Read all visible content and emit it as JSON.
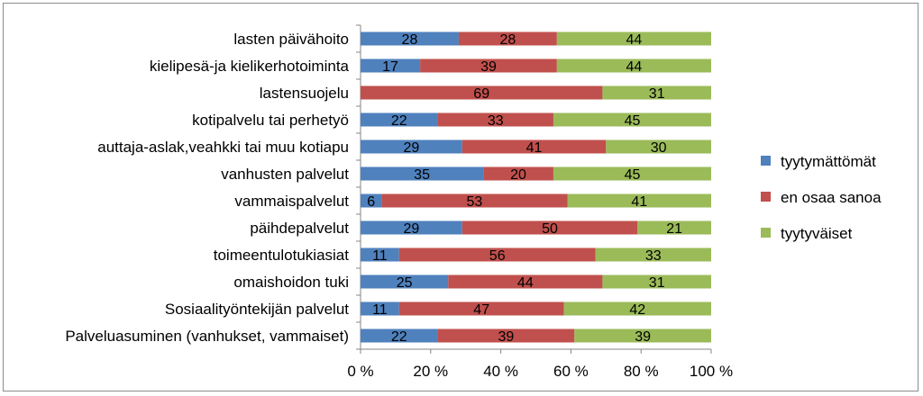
{
  "chart_data": {
    "type": "bar",
    "orientation": "horizontal",
    "stacked": "percent",
    "categories": [
      "lasten päivähoito",
      "kielipesä-ja kielikerhotoiminta",
      "lastensuojelu",
      "kotipalvelu tai perhetyö",
      "auttaja-aslak,veahkki tai muu kotiapu",
      "vanhusten palvelut",
      "vammaispalvelut",
      "päihdepalvelut",
      "toimeentulotukiasiat",
      "omaishoidon tuki",
      "Sosiaalityöntekijän palvelut",
      "Palveluasuminen (vanhukset, vammaiset)"
    ],
    "series": [
      {
        "name": "tyytymättömät",
        "color": "#4f81bd",
        "values": [
          28,
          17,
          0,
          22,
          29,
          35,
          6,
          29,
          11,
          25,
          11,
          22
        ]
      },
      {
        "name": "en osaa sanoa",
        "color": "#c0504d",
        "values": [
          28,
          39,
          69,
          33,
          41,
          20,
          53,
          50,
          56,
          44,
          47,
          39
        ]
      },
      {
        "name": "tyytyväiset",
        "color": "#9bbb59",
        "values": [
          44,
          44,
          31,
          45,
          30,
          45,
          41,
          21,
          33,
          31,
          42,
          39
        ]
      }
    ],
    "xticks": [
      "0 %",
      "20 %",
      "40 %",
      "60 %",
      "80 %",
      "100 %"
    ],
    "xlim": [
      0,
      100
    ],
    "grid": false,
    "legend_position": "right"
  }
}
